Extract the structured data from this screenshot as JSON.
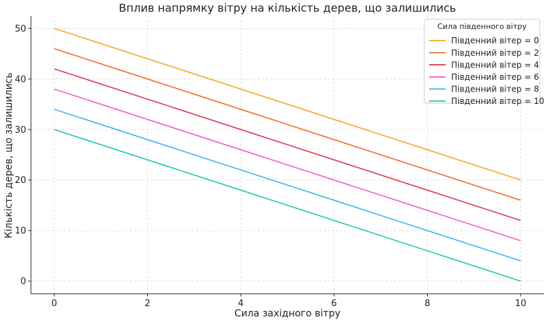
{
  "chart_data": {
    "type": "line",
    "title": "Вплив напрямку вітру на кількість дерев, що залишились",
    "xlabel": "Сила західного вітру",
    "ylabel": "Кількість дерев, що залишились",
    "xlim": [
      -0.5,
      10.5
    ],
    "ylim": [
      -2.5,
      52.5
    ],
    "x_ticks": [
      0,
      2,
      4,
      6,
      8,
      10
    ],
    "y_ticks": [
      0,
      10,
      20,
      30,
      40,
      50
    ],
    "grid": true,
    "legend_title": "Сила південного вітру",
    "legend_position": "top-right",
    "x": [
      0,
      10
    ],
    "series": [
      {
        "name": "Південний вітер = 0",
        "values": [
          50,
          20
        ],
        "color": "#f5a623"
      },
      {
        "name": "Південний вітер = 2",
        "values": [
          46,
          16
        ],
        "color": "#ef6b2d"
      },
      {
        "name": "Південний вітер = 4",
        "values": [
          42,
          12
        ],
        "color": "#e0364e"
      },
      {
        "name": "Південний вітер = 6",
        "values": [
          38,
          8
        ],
        "color": "#ee5fbf"
      },
      {
        "name": "Південний вітер = 8",
        "values": [
          34,
          4
        ],
        "color": "#3ab3ef"
      },
      {
        "name": "Південний вітер = 10",
        "values": [
          30,
          0
        ],
        "color": "#1ec8b4"
      }
    ]
  }
}
